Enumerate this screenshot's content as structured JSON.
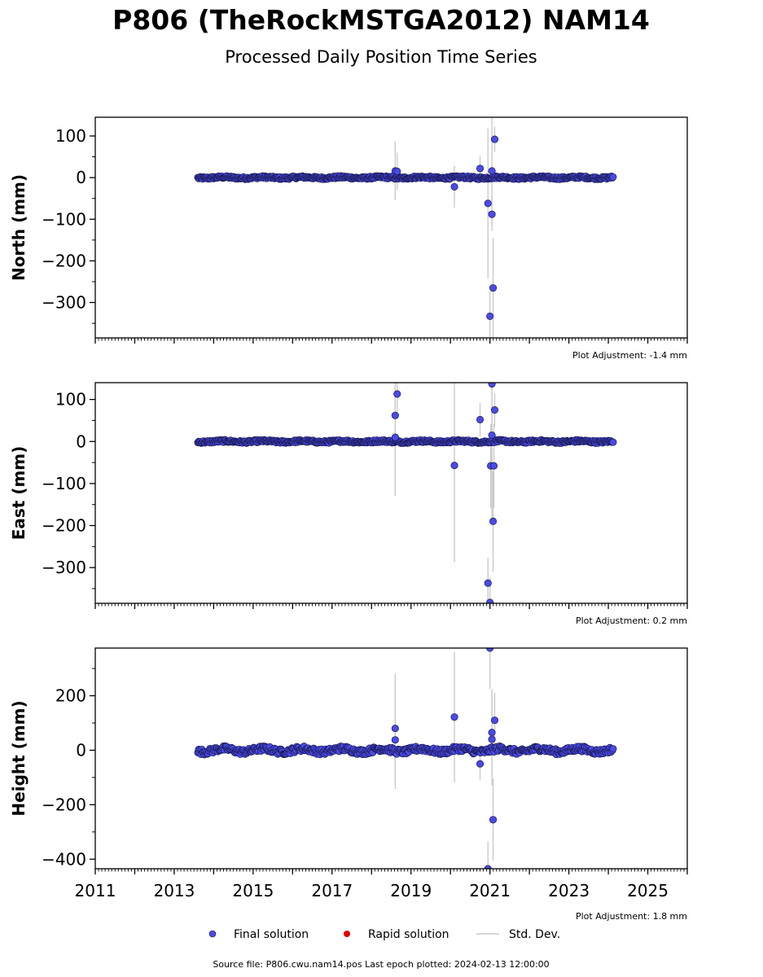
{
  "chart_data": {
    "type": "scatter",
    "title": "P806 (TheRockMSTGA2012) NAM14",
    "subtitle": "Processed Daily Position Time Series",
    "xlim": [
      2011,
      2026
    ],
    "x_ticks": [
      2011,
      2013,
      2015,
      2017,
      2019,
      2021,
      2023,
      2025
    ],
    "x_range_data": [
      2013.6,
      2024.12
    ],
    "colors": {
      "final": "#4a4ae8",
      "final_edge": "#1a1a50",
      "rapid": "#e00000",
      "stddev": "#c8c8c8"
    },
    "legend": {
      "placement": "bottom-center",
      "entries": [
        "Final solution",
        "Rapid solution",
        "Std. Dev."
      ]
    },
    "panels": [
      {
        "key": "north",
        "ylabel": "North (mm)",
        "ylim": [
          -385,
          145
        ],
        "y_ticks": [
          -300,
          -200,
          -100,
          0,
          100
        ],
        "y_tick_labels": [
          "−300",
          "−200",
          "−100",
          "0",
          "100"
        ],
        "noise_amplitude": 3,
        "adjustment": "Plot Adjustment: -1.4 mm",
        "outliers": [
          {
            "x": 2018.6,
            "y": 16,
            "err": 70
          },
          {
            "x": 2018.65,
            "y": 15,
            "err": 45
          },
          {
            "x": 2020.1,
            "y": -22,
            "err": 50
          },
          {
            "x": 2020.75,
            "y": 22,
            "err": 30
          },
          {
            "x": 2020.95,
            "y": -62,
            "err": 180
          },
          {
            "x": 2021.0,
            "y": -333,
            "err": 60
          },
          {
            "x": 2021.05,
            "y": -88,
            "err": 40
          },
          {
            "x": 2021.05,
            "y": 16,
            "err": 130
          },
          {
            "x": 2021.08,
            "y": -265,
            "err": 120
          },
          {
            "x": 2021.12,
            "y": 92,
            "err": 30
          }
        ]
      },
      {
        "key": "east",
        "ylabel": "East (mm)",
        "ylim": [
          -385,
          140
        ],
        "y_ticks": [
          -300,
          -200,
          -100,
          0,
          100
        ],
        "y_tick_labels": [
          "−300",
          "−200",
          "−100",
          "0",
          "100"
        ],
        "noise_amplitude": 3,
        "adjustment": "Plot Adjustment: 0.2 mm",
        "outliers": [
          {
            "x": 2018.6,
            "y": 62,
            "err": 70
          },
          {
            "x": 2018.65,
            "y": 113,
            "err": 45
          },
          {
            "x": 2018.6,
            "y": 10,
            "err": 140
          },
          {
            "x": 2020.1,
            "y": -57,
            "err": 230
          },
          {
            "x": 2020.75,
            "y": 52,
            "err": 40
          },
          {
            "x": 2020.95,
            "y": -337,
            "err": 60
          },
          {
            "x": 2021.0,
            "y": -383,
            "err": 60
          },
          {
            "x": 2021.02,
            "y": -58,
            "err": 100
          },
          {
            "x": 2021.05,
            "y": 137,
            "err": 120
          },
          {
            "x": 2021.05,
            "y": 15,
            "err": 200
          },
          {
            "x": 2021.08,
            "y": -190,
            "err": 120
          },
          {
            "x": 2021.1,
            "y": -58,
            "err": 100
          },
          {
            "x": 2021.12,
            "y": 75,
            "err": 40
          }
        ]
      },
      {
        "key": "height",
        "ylabel": "Height (mm)",
        "ylim": [
          -435,
          375
        ],
        "y_ticks": [
          -400,
          -200,
          0,
          200
        ],
        "y_tick_labels": [
          "−400",
          "−200",
          "0",
          "200"
        ],
        "noise_amplitude": 10,
        "adjustment": "Plot Adjustment: 1.8 mm",
        "outliers": [
          {
            "x": 2018.6,
            "y": 80,
            "err": 200
          },
          {
            "x": 2018.6,
            "y": 38,
            "err": 180
          },
          {
            "x": 2020.1,
            "y": 122,
            "err": 240
          },
          {
            "x": 2020.75,
            "y": -50,
            "err": 60
          },
          {
            "x": 2020.95,
            "y": -435,
            "err": 100
          },
          {
            "x": 2021.0,
            "y": 375,
            "err": 150
          },
          {
            "x": 2021.05,
            "y": 65,
            "err": 160
          },
          {
            "x": 2021.05,
            "y": 40,
            "err": 170
          },
          {
            "x": 2021.08,
            "y": -255,
            "err": 150
          },
          {
            "x": 2021.12,
            "y": 110,
            "err": 100
          }
        ]
      }
    ]
  },
  "footer": {
    "source": "Source file: P806.cwu.nam14.pos  Last epoch plotted: 2024-02-13 12:00:00"
  }
}
